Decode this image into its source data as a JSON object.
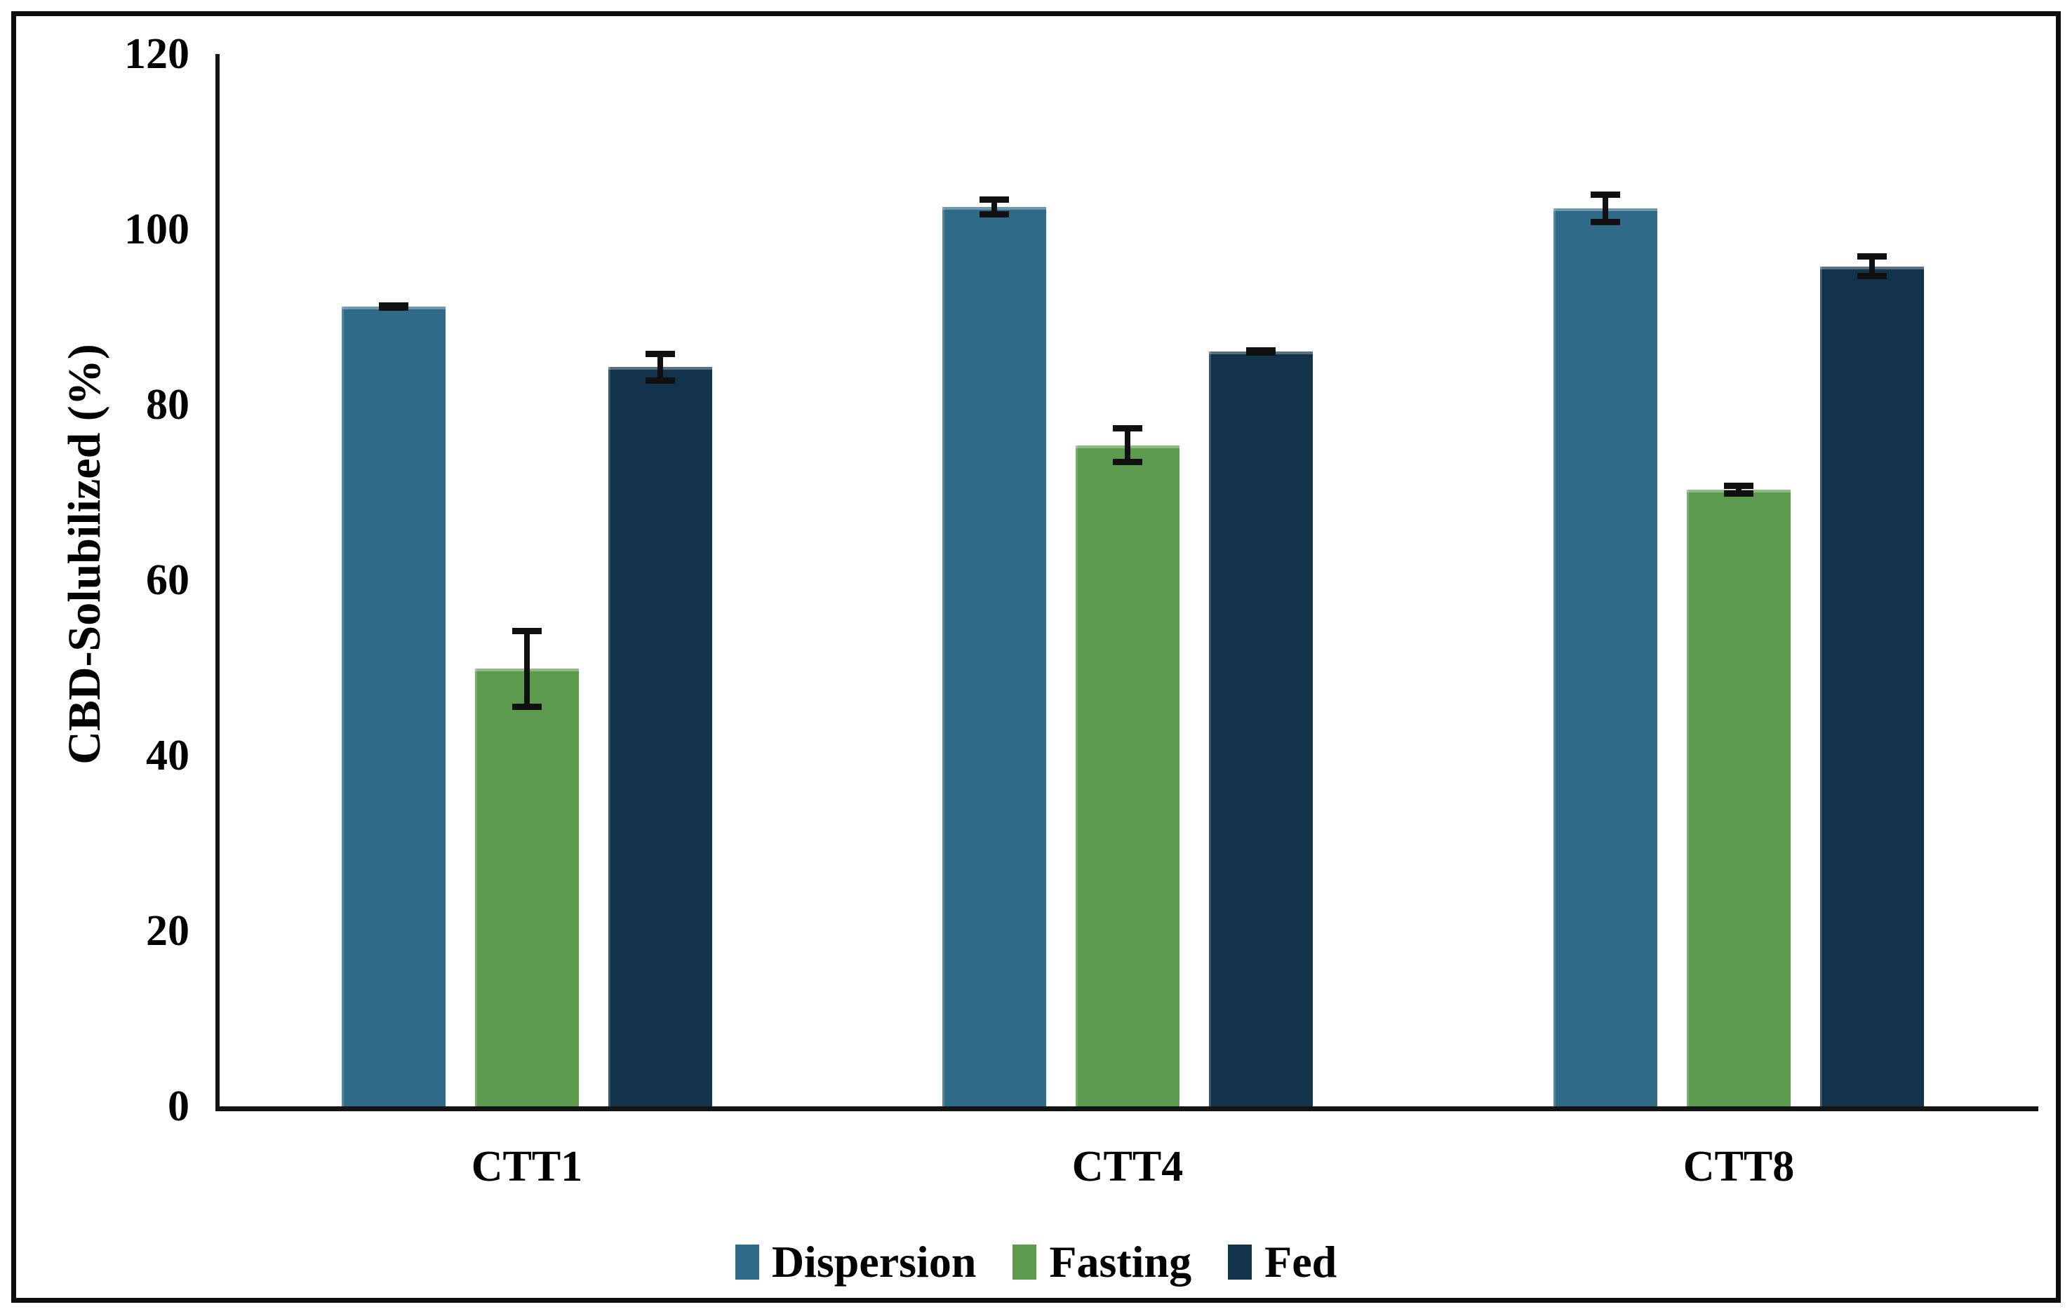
{
  "figure": {
    "background_color": "#ffffff",
    "border_color": "#0d0d0d"
  },
  "y_axis": {
    "title": "CBD-Solubilized (%)",
    "tick_labels": [
      "0",
      "20",
      "40",
      "60",
      "80",
      "100",
      "120"
    ],
    "tick_values": [
      0,
      20,
      40,
      60,
      80,
      100,
      120
    ],
    "min": 0,
    "max": 120
  },
  "x_axis": {
    "tick_labels": [
      "CTT1",
      "CTT4",
      "CTT8"
    ]
  },
  "legend": {
    "items": [
      {
        "label": "Dispersion",
        "color": "#2F6A88"
      },
      {
        "label": "Fasting",
        "color": "#5C9B4D"
      },
      {
        "label": "Fed",
        "color": "#12334A"
      }
    ]
  },
  "chart_data": {
    "type": "bar",
    "title": "",
    "categories": [
      "CTT1",
      "CTT4",
      "CTT8"
    ],
    "series": [
      {
        "name": "Dispersion",
        "color": "#2F6A88",
        "values": [
          91.2,
          102.6,
          102.4
        ],
        "errors": [
          0.5,
          1.2,
          1.9
        ]
      },
      {
        "name": "Fasting",
        "color": "#5C9B4D",
        "values": [
          49.9,
          75.4,
          70.3
        ],
        "errors": [
          4.7,
          2.3,
          0.8
        ]
      },
      {
        "name": "Fed",
        "color": "#12334A",
        "values": [
          84.3,
          86.1,
          95.8
        ],
        "errors": [
          1.9,
          0.5,
          1.5
        ]
      }
    ],
    "xlabel": "",
    "ylabel": "CBD-Solubilized (%)",
    "ylim": [
      0,
      120
    ],
    "grid": false,
    "error_bars": true,
    "legend_position": "bottom"
  }
}
